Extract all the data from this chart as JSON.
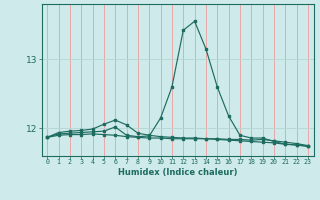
{
  "xlabel": "Humidex (Indice chaleur)",
  "x_values": [
    0,
    1,
    2,
    3,
    4,
    5,
    6,
    7,
    8,
    9,
    10,
    11,
    12,
    13,
    14,
    15,
    16,
    17,
    18,
    19,
    20,
    21,
    22,
    23
  ],
  "line_peak": [
    11.87,
    11.92,
    11.93,
    11.94,
    11.95,
    11.96,
    12.02,
    11.9,
    11.88,
    11.89,
    12.15,
    12.6,
    13.42,
    13.55,
    13.15,
    12.6,
    12.18,
    11.9,
    11.86,
    11.86,
    11.81,
    11.77,
    11.76,
    11.74
  ],
  "line_diag": [
    11.87,
    11.94,
    11.96,
    11.97,
    11.99,
    12.06,
    12.12,
    12.05,
    11.93,
    11.9,
    11.88,
    11.87,
    11.86,
    11.86,
    11.85,
    11.84,
    11.83,
    11.82,
    11.81,
    11.8,
    11.79,
    11.77,
    11.76,
    11.74
  ],
  "line_flat": [
    11.87,
    11.9,
    11.91,
    11.91,
    11.92,
    11.91,
    11.9,
    11.88,
    11.87,
    11.86,
    11.86,
    11.85,
    11.85,
    11.85,
    11.85,
    11.85,
    11.84,
    11.84,
    11.83,
    11.84,
    11.82,
    11.8,
    11.78,
    11.75
  ],
  "bg_color": "#ceeaea",
  "line_color": "#1e6b60",
  "vgrid_color": "#e8a8a8",
  "hgrid_color": "#b8d8d8",
  "yticks": [
    12,
    13
  ],
  "ylim": [
    11.6,
    13.8
  ],
  "xlim": [
    -0.5,
    23.5
  ]
}
